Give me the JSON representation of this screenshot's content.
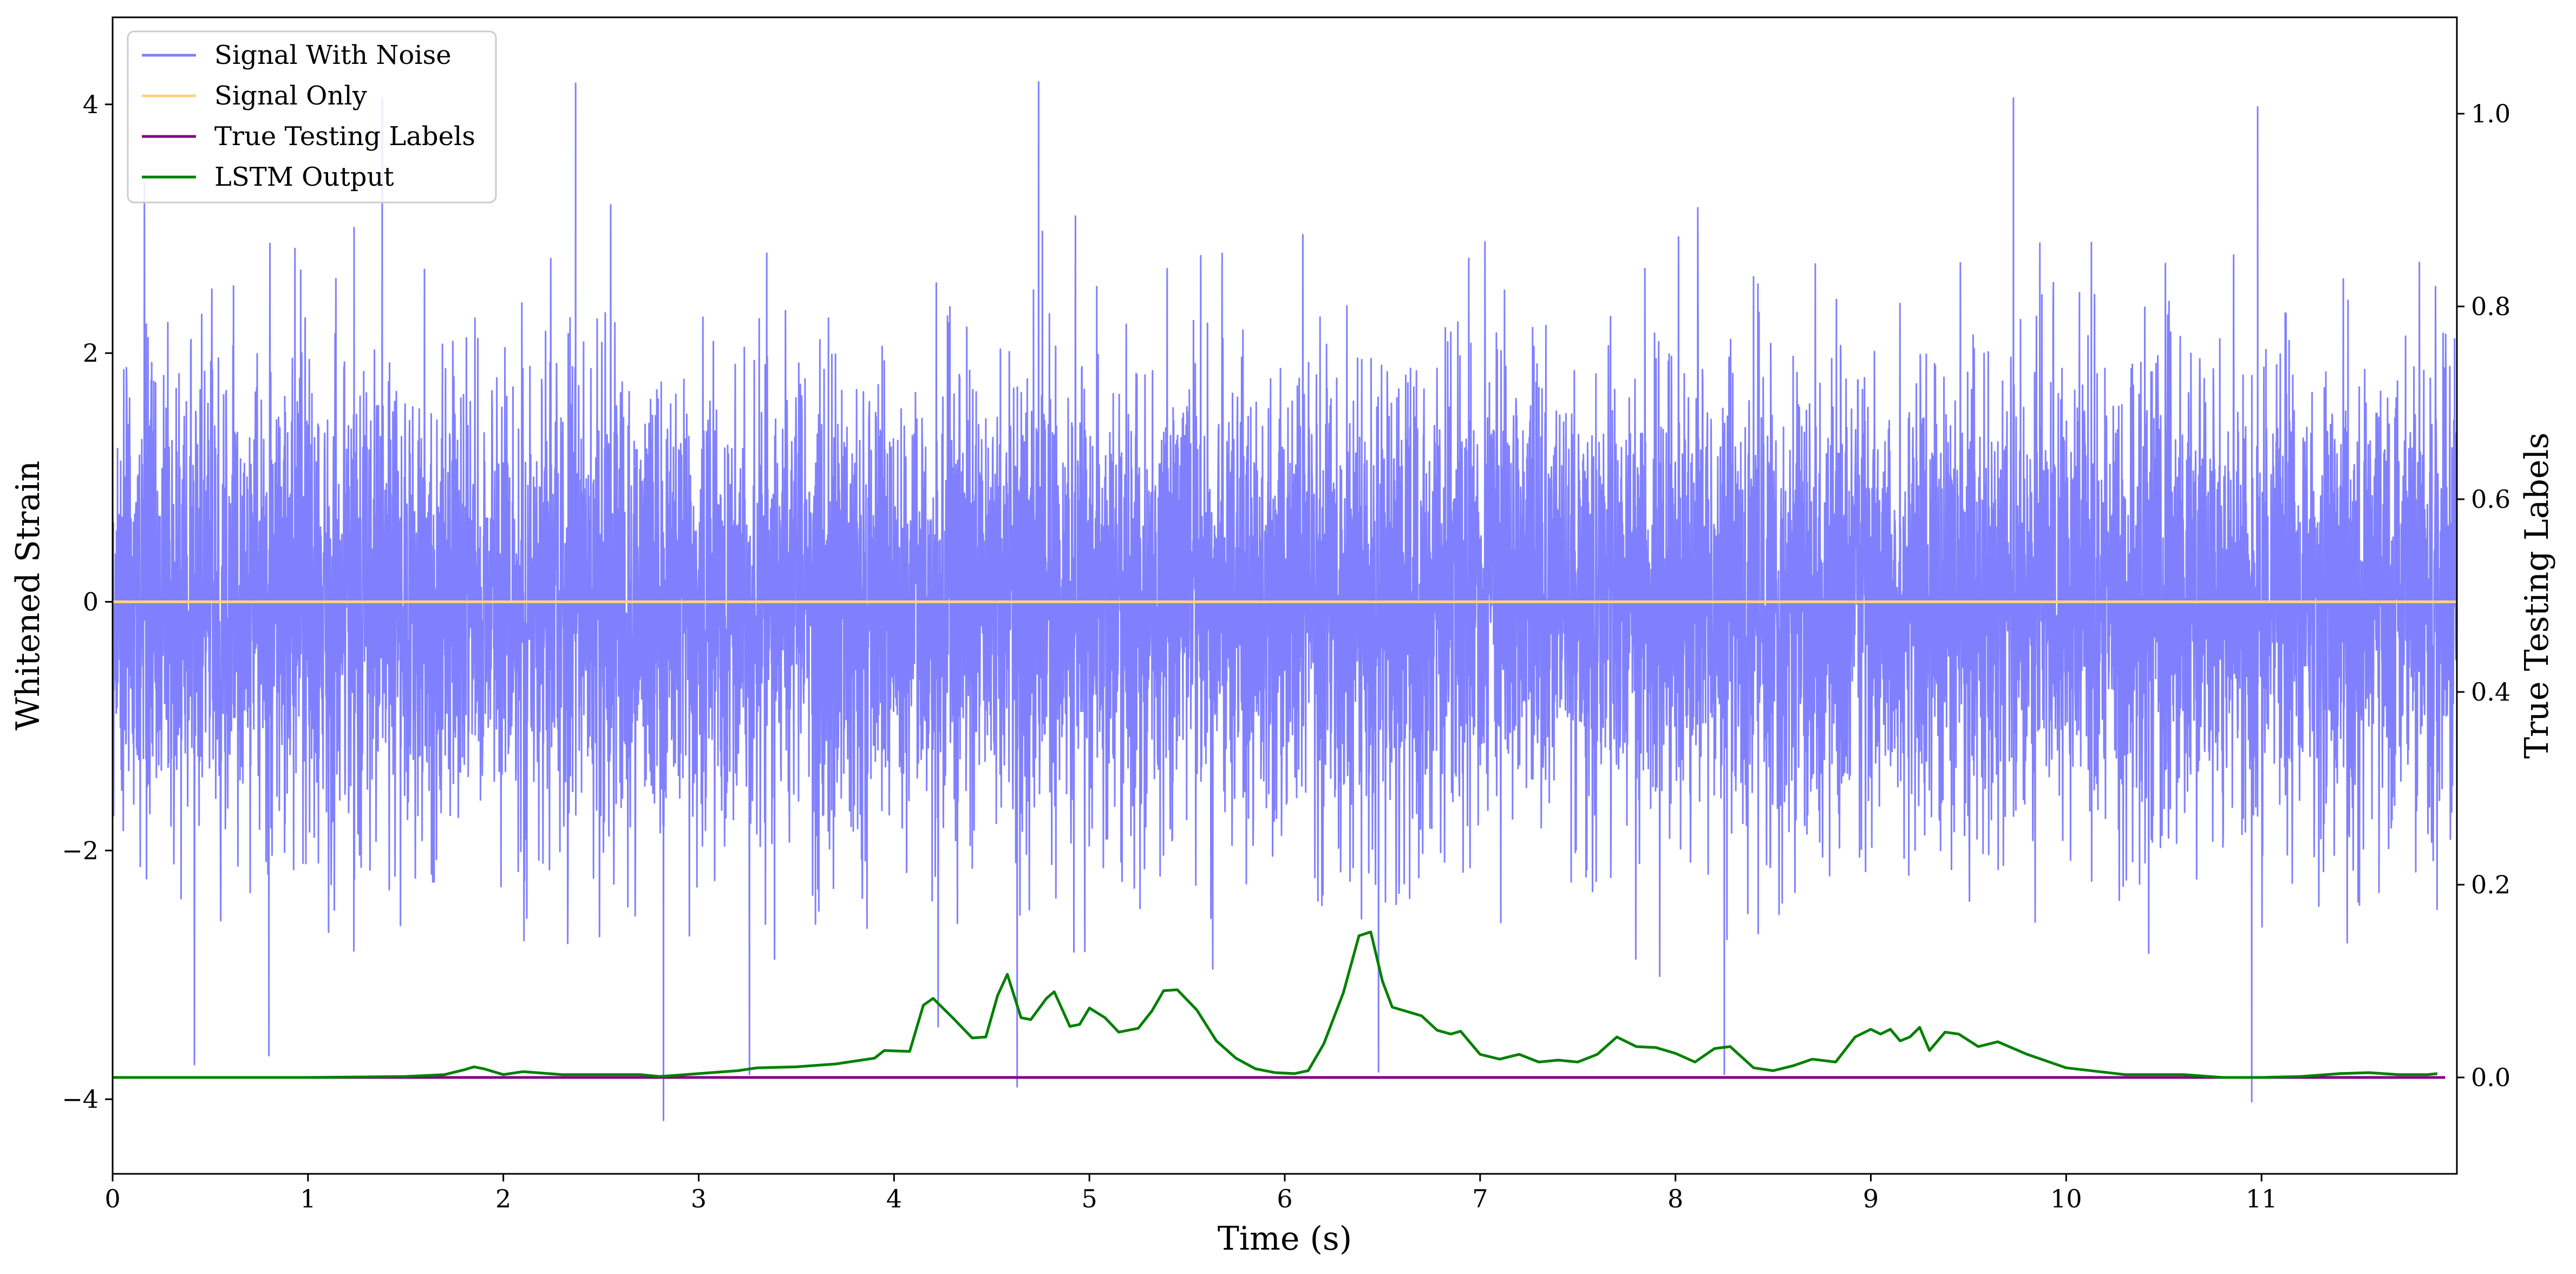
{
  "chart_data": {
    "type": "line",
    "xlabel": "Time (s)",
    "ylabel": "Whitened Strain",
    "y2label": "True Testing Labels",
    "xlim": [
      0,
      12
    ],
    "ylim": [
      -4.6,
      4.7
    ],
    "y2lim": [
      -0.1,
      1.1
    ],
    "xticks": [
      0,
      1,
      2,
      3,
      4,
      5,
      6,
      7,
      8,
      9,
      10,
      11
    ],
    "yticks": [
      -4,
      -2,
      0,
      2,
      4
    ],
    "y2ticks": [
      0.0,
      0.2,
      0.4,
      0.6,
      0.8,
      1.0
    ],
    "xtick_labels": [
      "0",
      "1",
      "2",
      "3",
      "4",
      "5",
      "6",
      "7",
      "8",
      "9",
      "10",
      "11"
    ],
    "ytick_labels": [
      "−4",
      "−2",
      "0",
      "2",
      "4"
    ],
    "y2tick_labels": [
      "0.0",
      "0.2",
      "0.4",
      "0.6",
      "0.8",
      "1.0"
    ],
    "legend_position": "top-left",
    "grid": false,
    "series": [
      {
        "name": "Signal With Noise",
        "color": "#8080ff",
        "axis": "left",
        "description_values": "dense noise, approx. standard deviation 0.95 with spikes up to about ±4.2",
        "noise_std": 0.95,
        "spikes": [
          {
            "x": 2.37,
            "y": 4.17
          },
          {
            "x": 4.74,
            "y": 4.18
          },
          {
            "x": 9.73,
            "y": 4.05
          },
          {
            "x": 10.98,
            "y": 3.98
          },
          {
            "x": 2.82,
            "y": -4.17
          },
          {
            "x": 4.63,
            "y": -3.9
          },
          {
            "x": 10.95,
            "y": -4.02
          },
          {
            "x": 0.8,
            "y": -3.65
          },
          {
            "x": 3.26,
            "y": -3.8
          },
          {
            "x": 1.38,
            "y": 4.05
          },
          {
            "x": 8.25,
            "y": -3.8
          },
          {
            "x": 6.48,
            "y": -3.78
          }
        ]
      },
      {
        "name": "Signal Only",
        "color": "#ffd280",
        "axis": "left",
        "x": [
          0,
          12
        ],
        "y": [
          0,
          0
        ]
      },
      {
        "name": "True Testing Labels",
        "color": "#800080",
        "axis": "right",
        "x": [
          0,
          11.94
        ],
        "y": [
          0,
          0
        ]
      },
      {
        "name": "LSTM Output",
        "color": "#008000",
        "axis": "right",
        "x": [
          0,
          0.5,
          1.0,
          1.5,
          1.7,
          1.8,
          1.85,
          1.9,
          2.0,
          2.1,
          2.3,
          2.5,
          2.7,
          2.8,
          3.0,
          3.2,
          3.3,
          3.5,
          3.7,
          3.9,
          3.95,
          4.08,
          4.15,
          4.2,
          4.3,
          4.4,
          4.47,
          4.53,
          4.58,
          4.65,
          4.7,
          4.78,
          4.82,
          4.9,
          4.95,
          5.0,
          5.08,
          5.15,
          5.25,
          5.32,
          5.38,
          5.45,
          5.55,
          5.65,
          5.75,
          5.85,
          5.95,
          6.05,
          6.12,
          6.2,
          6.3,
          6.38,
          6.44,
          6.5,
          6.55,
          6.7,
          6.78,
          6.85,
          6.9,
          7.0,
          7.1,
          7.2,
          7.3,
          7.4,
          7.5,
          7.6,
          7.7,
          7.8,
          7.9,
          8.0,
          8.1,
          8.2,
          8.28,
          8.4,
          8.5,
          8.6,
          8.7,
          8.82,
          8.92,
          9.0,
          9.05,
          9.1,
          9.15,
          9.2,
          9.25,
          9.3,
          9.38,
          9.45,
          9.55,
          9.65,
          9.8,
          10.0,
          10.3,
          10.6,
          10.8,
          11.0,
          11.2,
          11.4,
          11.55,
          11.7,
          11.85,
          11.9
        ],
        "y": [
          0.0,
          0.0,
          0.0,
          0.001,
          0.003,
          0.008,
          0.011,
          0.009,
          0.003,
          0.006,
          0.003,
          0.003,
          0.003,
          0.001,
          0.004,
          0.007,
          0.01,
          0.011,
          0.014,
          0.02,
          0.028,
          0.027,
          0.075,
          0.082,
          0.062,
          0.041,
          0.042,
          0.085,
          0.107,
          0.062,
          0.06,
          0.082,
          0.089,
          0.053,
          0.055,
          0.072,
          0.062,
          0.047,
          0.051,
          0.069,
          0.09,
          0.091,
          0.07,
          0.038,
          0.02,
          0.009,
          0.005,
          0.004,
          0.007,
          0.035,
          0.088,
          0.147,
          0.151,
          0.1,
          0.073,
          0.064,
          0.049,
          0.045,
          0.048,
          0.024,
          0.019,
          0.024,
          0.016,
          0.018,
          0.016,
          0.024,
          0.042,
          0.032,
          0.031,
          0.025,
          0.016,
          0.03,
          0.032,
          0.01,
          0.007,
          0.012,
          0.019,
          0.016,
          0.042,
          0.05,
          0.045,
          0.05,
          0.038,
          0.042,
          0.052,
          0.028,
          0.047,
          0.045,
          0.032,
          0.037,
          0.024,
          0.01,
          0.003,
          0.003,
          0.0,
          0.0,
          0.001,
          0.004,
          0.005,
          0.003,
          0.003,
          0.004
        ]
      }
    ]
  }
}
